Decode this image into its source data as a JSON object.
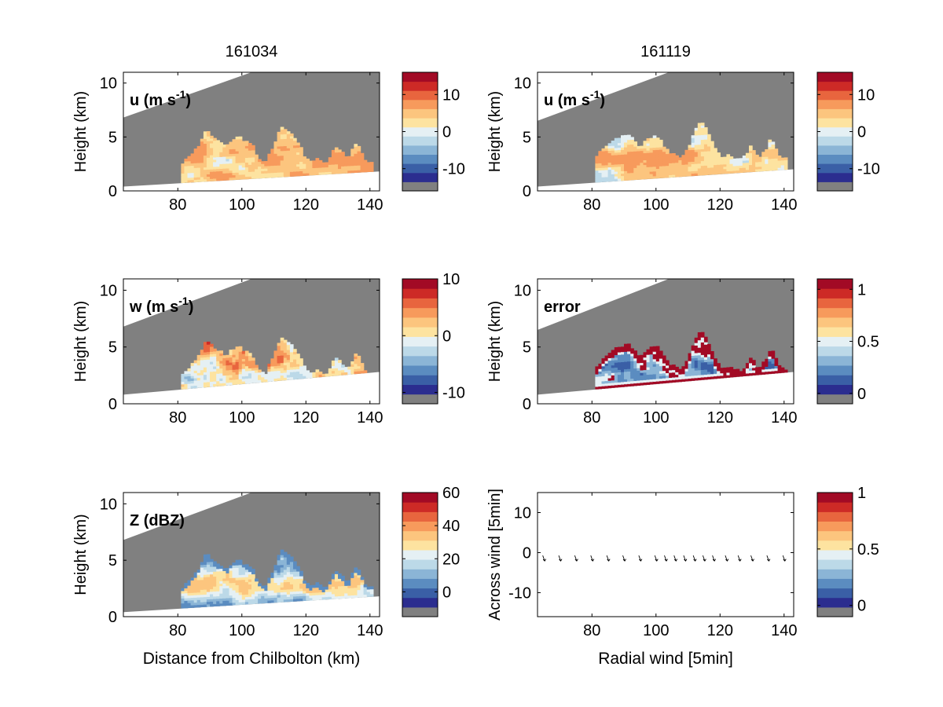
{
  "colors": {
    "scale": [
      "#2b2d8f",
      "#3a5fa6",
      "#5b8cc0",
      "#8bb5d6",
      "#bcd9e8",
      "#e5f0f4",
      "#fde3a0",
      "#fcc57e",
      "#f79a5c",
      "#e8653e",
      "#cd2a26",
      "#a20a25"
    ],
    "grey": "#808080",
    "tick_line": "#000000"
  },
  "chart_data": [
    {
      "type": "heatmap",
      "panel": "u-161034",
      "title": "161034",
      "label": "u (m s⁻¹)",
      "label_main": "u (m s",
      "label_sup": "-1",
      "label_tail": ")",
      "ylabel": "Height (km)",
      "xlabel": "",
      "xlim": [
        63,
        143
      ],
      "ylim": [
        0,
        11
      ],
      "xticks": [
        "80",
        "100",
        "120",
        "140"
      ],
      "xtick_values": [
        80,
        100,
        120,
        140
      ],
      "yticks": [
        "0",
        "5",
        "10"
      ],
      "ytick_values": [
        0,
        5,
        10
      ],
      "colorbar": {
        "range": [
          -16,
          16
        ],
        "ticks": [
          "10",
          "0",
          "-10"
        ],
        "tick_values": [
          10,
          0,
          -10
        ]
      },
      "beam_top": [
        [
          63,
          6.8
        ],
        [
          103,
          11
        ]
      ],
      "beam_bottom": [
        [
          63,
          0.4
        ],
        [
          143,
          1.8
        ]
      ],
      "field": "u"
    },
    {
      "type": "heatmap",
      "panel": "u-161119",
      "title": "161119",
      "label": "u (m s⁻¹)",
      "label_main": "u (m s",
      "label_sup": "-1",
      "label_tail": ")",
      "ylabel": "Height (km)",
      "xlabel": "",
      "xlim": [
        63,
        143
      ],
      "ylim": [
        0,
        11
      ],
      "xticks": [
        "80",
        "100",
        "120",
        "140"
      ],
      "xtick_values": [
        80,
        100,
        120,
        140
      ],
      "yticks": [
        "0",
        "5",
        "10"
      ],
      "ytick_values": [
        0,
        5,
        10
      ],
      "colorbar": {
        "range": [
          -16,
          16
        ],
        "ticks": [
          "10",
          "0",
          "-10"
        ],
        "tick_values": [
          10,
          0,
          -10
        ]
      },
      "beam_top": [
        [
          63,
          6.5
        ],
        [
          104,
          11
        ]
      ],
      "beam_bottom": [
        [
          63,
          0.4
        ],
        [
          143,
          2.0
        ]
      ],
      "field": "u"
    },
    {
      "type": "heatmap",
      "panel": "w-161034",
      "title": "",
      "label": "w (m s⁻¹)",
      "label_main": "w (m s",
      "label_sup": "-1",
      "label_tail": ")",
      "ylabel": "Height (km)",
      "xlabel": "",
      "xlim": [
        63,
        143
      ],
      "ylim": [
        0,
        11
      ],
      "xticks": [
        "80",
        "100",
        "120",
        "140"
      ],
      "xtick_values": [
        80,
        100,
        120,
        140
      ],
      "yticks": [
        "0",
        "5",
        "10"
      ],
      "ytick_values": [
        0,
        5,
        10
      ],
      "colorbar": {
        "range": [
          -12,
          10
        ],
        "ticks": [
          "10",
          "0",
          "-10"
        ],
        "tick_values": [
          10,
          0,
          -10
        ]
      },
      "beam_top": [
        [
          63,
          6.8
        ],
        [
          103,
          11
        ]
      ],
      "beam_bottom": [
        [
          63,
          0.8
        ],
        [
          143,
          2.8
        ]
      ],
      "field": "w"
    },
    {
      "type": "heatmap",
      "panel": "error-161119",
      "title": "",
      "label": "error",
      "label_main": "error",
      "label_sup": "",
      "label_tail": "",
      "ylabel": "Height (km)",
      "xlabel": "",
      "xlim": [
        63,
        143
      ],
      "ylim": [
        0,
        11
      ],
      "xticks": [
        "80",
        "100",
        "120",
        "140"
      ],
      "xtick_values": [
        80,
        100,
        120,
        140
      ],
      "yticks": [
        "0",
        "5",
        "10"
      ],
      "ytick_values": [
        0,
        5,
        10
      ],
      "colorbar": {
        "range": [
          -0.1,
          1.1
        ],
        "ticks": [
          "1",
          "0.5",
          "0"
        ],
        "tick_values": [
          1,
          0.5,
          0
        ]
      },
      "beam_top": [
        [
          63,
          6.5
        ],
        [
          104,
          11
        ]
      ],
      "beam_bottom": [
        [
          63,
          0.8
        ],
        [
          143,
          2.8
        ]
      ],
      "field": "error"
    },
    {
      "type": "heatmap",
      "panel": "z-161034",
      "title": "",
      "label": "Z (dBZ)",
      "label_main": "Z (dBZ)",
      "label_sup": "",
      "label_tail": "",
      "ylabel": "Height (km)",
      "xlabel": "Distance from Chilbolton (km)",
      "xlim": [
        63,
        143
      ],
      "ylim": [
        0,
        11
      ],
      "xticks": [
        "80",
        "100",
        "120",
        "140"
      ],
      "xtick_values": [
        80,
        100,
        120,
        140
      ],
      "yticks": [
        "0",
        "5",
        "10"
      ],
      "ytick_values": [
        0,
        5,
        10
      ],
      "colorbar": {
        "range": [
          -15,
          60
        ],
        "ticks": [
          "60",
          "40",
          "20",
          "0"
        ],
        "tick_values": [
          60,
          40,
          20,
          0
        ]
      },
      "beam_top": [
        [
          63,
          6.8
        ],
        [
          103,
          11
        ]
      ],
      "beam_bottom": [
        [
          63,
          0.4
        ],
        [
          143,
          1.8
        ]
      ],
      "field": "z"
    },
    {
      "type": "scatter",
      "panel": "wind-vectors",
      "title": "",
      "label": "",
      "ylabel": "Across wind [5min]",
      "xlabel": "Radial wind [5min]",
      "xlim": [
        63,
        143
      ],
      "ylim": [
        -16,
        15
      ],
      "xticks": [
        "80",
        "100",
        "120",
        "140"
      ],
      "xtick_values": [
        80,
        100,
        120,
        140
      ],
      "yticks": [
        "10",
        "0",
        "-10"
      ],
      "ytick_values": [
        10,
        0,
        -10
      ],
      "colorbar": {
        "range": [
          -0.1,
          1.0
        ],
        "ticks": [
          "1",
          "0.5",
          "0"
        ],
        "tick_values": [
          1,
          0.5,
          0
        ]
      },
      "points_x": [
        65,
        70,
        75,
        80,
        85,
        90,
        95,
        100,
        103,
        106,
        109,
        112,
        115,
        118,
        122,
        126,
        130,
        135,
        140
      ],
      "points_y": [
        -1.5,
        -1.5,
        -1.5,
        -1.5,
        -1.5,
        -1.5,
        -1.5,
        -1.5,
        -1.5,
        -1.5,
        -1.5,
        -1.5,
        -1.5,
        -1.5,
        -1.5,
        -1.5,
        -1.5,
        -1.5,
        -1.5
      ],
      "field": "vectors"
    }
  ]
}
